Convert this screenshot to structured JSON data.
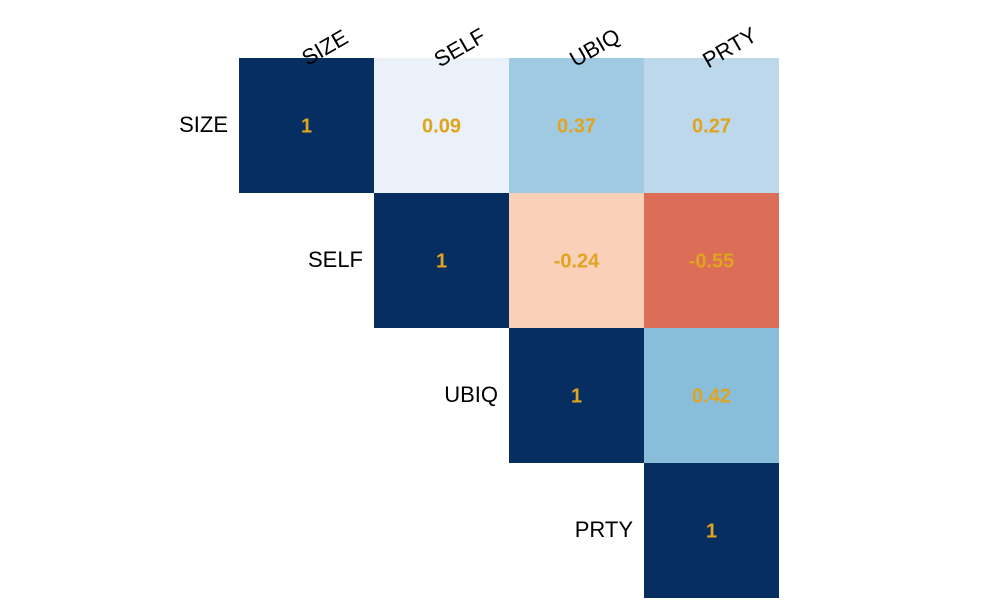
{
  "chart_data": {
    "type": "heatmap",
    "variables": [
      "SIZE",
      "SELF",
      "UBIQ",
      "PRTY"
    ],
    "matrix": [
      [
        1,
        0.09,
        0.37,
        0.27
      ],
      [
        null,
        1,
        -0.24,
        -0.55
      ],
      [
        null,
        null,
        1,
        0.42
      ],
      [
        null,
        null,
        null,
        1
      ]
    ],
    "cell_labels": [
      [
        "1",
        "0.09",
        "0.37",
        "0.27"
      ],
      [
        null,
        "1",
        "-0.24",
        "-0.55"
      ],
      [
        null,
        null,
        "1",
        "0.42"
      ],
      [
        null,
        null,
        null,
        "1"
      ]
    ],
    "triangle": "upper",
    "value_range": [
      -1,
      1
    ],
    "colors": {
      "label_text": "#E0A41F",
      "text": "#000000",
      "cells": [
        [
          "#062E61",
          "#EAF1F8",
          "#9FCAE1",
          "#BDD8EA"
        ],
        [
          null,
          "#062E61",
          "#FBD0B9",
          "#DC6D57"
        ],
        [
          null,
          null,
          "#062E61",
          "#89BEDB"
        ],
        [
          null,
          null,
          null,
          "#062E61"
        ]
      ]
    }
  }
}
